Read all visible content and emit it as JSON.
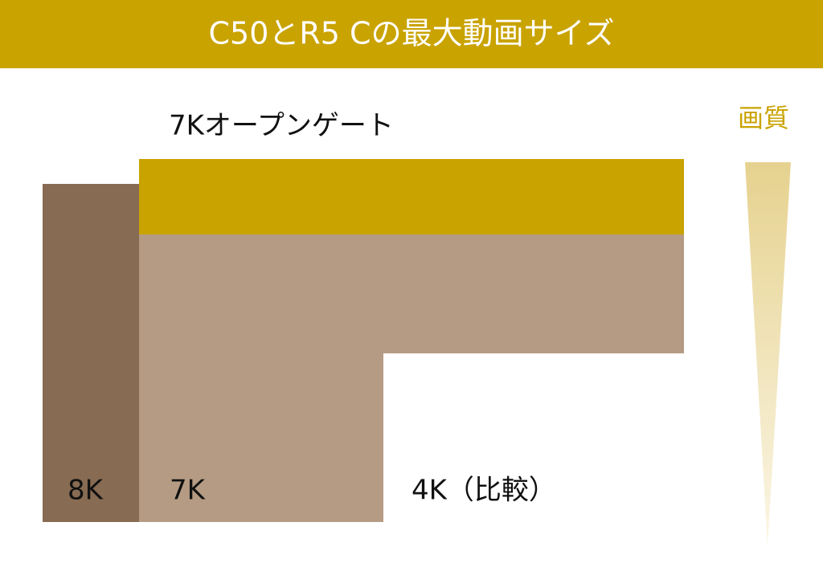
{
  "header": {
    "title": "C50とR5 Cの最大動画サイズ"
  },
  "diagram": {
    "open_gate_label": "7Kオープンゲート",
    "quality_label": "画質",
    "size_labels": [
      "8K",
      "7K",
      "4K（比較）"
    ]
  }
}
